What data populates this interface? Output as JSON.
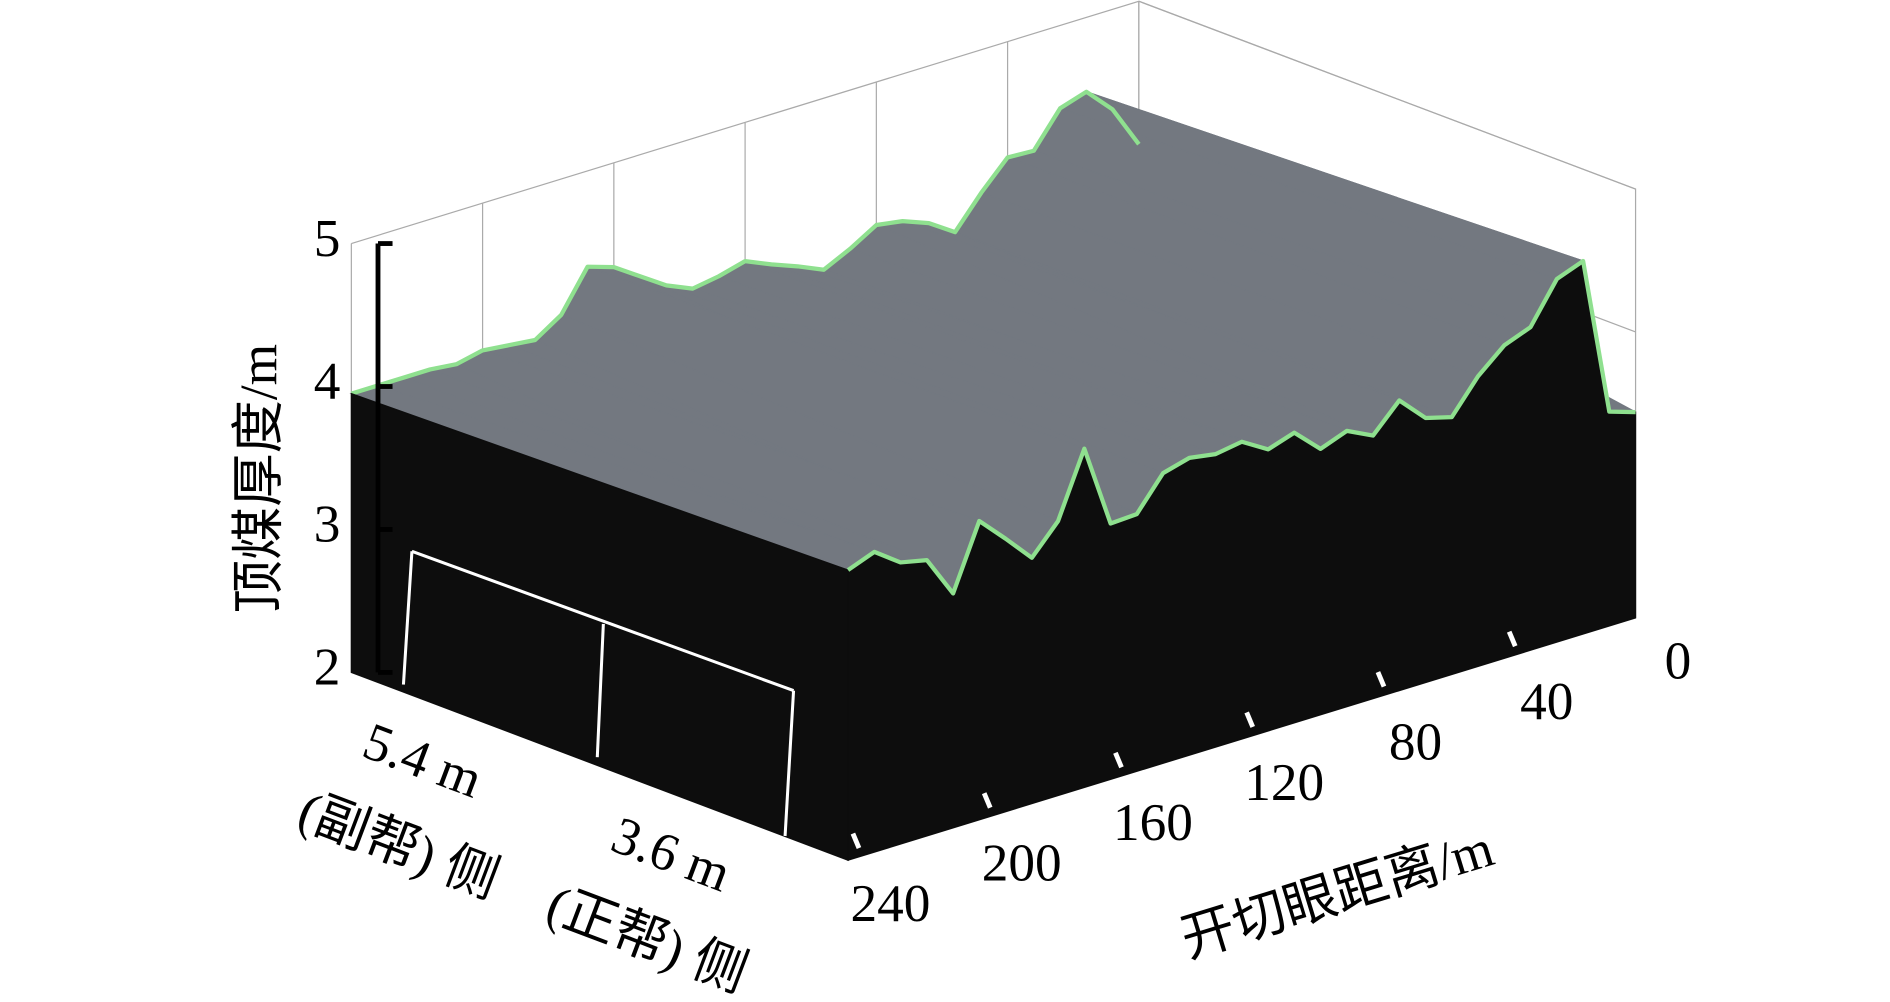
{
  "chart_data": {
    "type": "surface3d",
    "xlabel": "开切眼距离/m",
    "ylabel": "顶煤厚度/m",
    "x": [
      0,
      8,
      16,
      24,
      32,
      40,
      48,
      56,
      64,
      72,
      80,
      88,
      96,
      104,
      112,
      120,
      128,
      136,
      144,
      152,
      160,
      168,
      176,
      184,
      192,
      200,
      208,
      216,
      224,
      232,
      240
    ],
    "xlim": [
      0,
      240
    ],
    "xticks": [
      0,
      40,
      80,
      120,
      160,
      200,
      240
    ],
    "ylim": [
      2,
      5
    ],
    "yticks": [
      2,
      3,
      4,
      5
    ],
    "depth_categories": [
      "5.4 m",
      "3.6 m"
    ],
    "depth_sublabels": [
      "(副帮) 侧",
      "(正帮) 侧"
    ],
    "grid": true,
    "surface_color": "#737880",
    "face_color": "#0d0d0d",
    "series": [
      {
        "color": "#8fe08f",
        "values": [
          4.0,
          4.3,
          4.48,
          4.42,
          4.18,
          4.19,
          4.0,
          3.78,
          3.9,
          3.97,
          4.0,
          3.89,
          3.8,
          3.88,
          3.95,
          4.03,
          3.98,
          3.95,
          4.03,
          4.15,
          4.27,
          4.33,
          4.05,
          3.93,
          3.95,
          3.97,
          3.93,
          3.95,
          3.95,
          3.95,
          3.95
        ]
      },
      {
        "color": "#8fe08f",
        "values": [
          3.44,
          3.5,
          4.61,
          4.54,
          4.26,
          4.19,
          4.03,
          3.8,
          3.85,
          4.03,
          3.84,
          3.93,
          3.86,
          4.03,
          3.97,
          4.08,
          4.05,
          4.08,
          4.03,
          3.8,
          3.79,
          4.37,
          3.92,
          3.72,
          3.91,
          4.09,
          3.64,
          3.93,
          3.97,
          4.1,
          4.03
        ]
      }
    ]
  }
}
